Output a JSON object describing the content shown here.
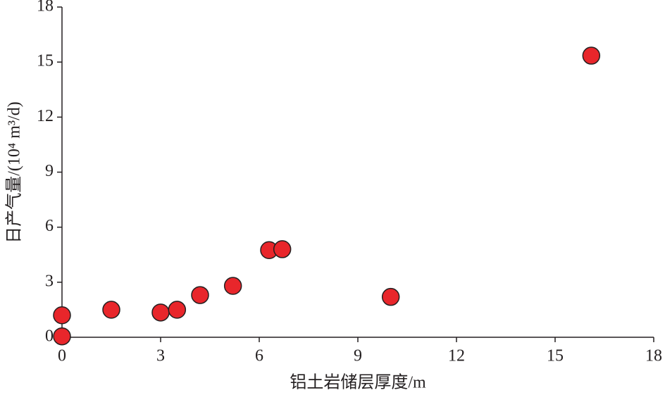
{
  "chart_data": {
    "type": "scatter",
    "x_label": "铝土岩储层厚度/m",
    "y_label": "日产气量/(10⁴ m³/d)",
    "x": [
      0,
      0,
      1.5,
      3.0,
      3.5,
      4.2,
      5.2,
      6.3,
      6.7,
      10.0,
      16.1
    ],
    "values": [
      0.05,
      1.2,
      1.5,
      1.35,
      1.5,
      2.3,
      2.8,
      4.75,
      4.8,
      2.2,
      15.35
    ],
    "color": "#e8262b",
    "xlim": [
      0,
      18
    ],
    "xticks": [
      0,
      3,
      6,
      9,
      12,
      15,
      18
    ],
    "ylim": [
      0,
      18
    ],
    "yticks": [
      0,
      3,
      6,
      9,
      12,
      15,
      18
    ],
    "grid": false
  }
}
